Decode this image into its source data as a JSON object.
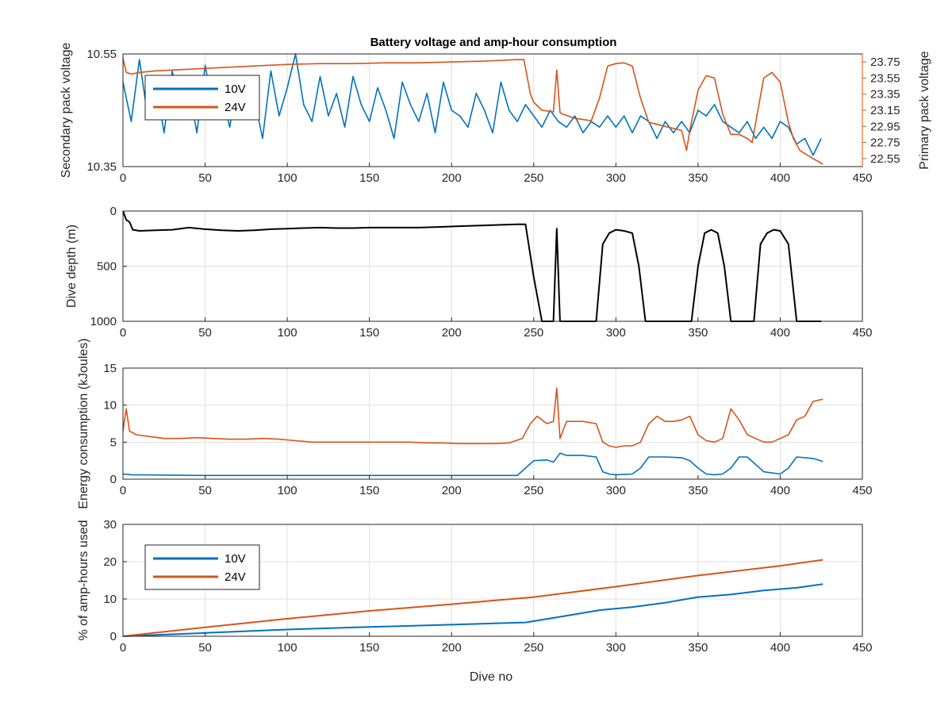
{
  "figure_title": "Battery voltage and amp-hour consumption",
  "colors": {
    "blue": "#0072BD",
    "orange": "#D95319",
    "black": "#000000",
    "axis": "#262626"
  },
  "chart_data": [
    {
      "type": "line",
      "id": "voltage",
      "title": "Battery voltage and amp-hour consumption",
      "xlabel": "",
      "ylabel": "Secondary pack voltage",
      "y2label": "Primary pack voltage",
      "xlim": [
        0,
        450
      ],
      "ylim": [
        10.35,
        10.55
      ],
      "y2lim": [
        22.45,
        23.85
      ],
      "xticks": [
        0,
        50,
        100,
        150,
        200,
        250,
        300,
        350,
        400,
        450
      ],
      "yticks": [
        "10.35",
        "10.55"
      ],
      "y2ticks": [
        "22.55",
        "22.75",
        "22.95",
        "23.15",
        "23.35",
        "23.55",
        "23.75"
      ],
      "grid": true,
      "legend": {
        "placement": "top-left",
        "entries": [
          "10V",
          "24V"
        ]
      },
      "series": [
        {
          "name": "10V",
          "axis": "left",
          "color": "#0072BD",
          "x": [
            0,
            5,
            10,
            15,
            20,
            25,
            30,
            35,
            40,
            45,
            50,
            55,
            60,
            65,
            70,
            75,
            80,
            85,
            90,
            95,
            100,
            105,
            110,
            115,
            120,
            125,
            130,
            135,
            140,
            145,
            150,
            155,
            160,
            165,
            170,
            175,
            180,
            185,
            190,
            195,
            200,
            205,
            210,
            215,
            220,
            225,
            230,
            235,
            240,
            245,
            250,
            255,
            260,
            265,
            270,
            275,
            280,
            285,
            290,
            295,
            300,
            305,
            310,
            315,
            320,
            325,
            330,
            335,
            340,
            345,
            350,
            355,
            360,
            365,
            370,
            375,
            380,
            385,
            390,
            395,
            400,
            405,
            410,
            415,
            420,
            425
          ],
          "y": [
            10.5,
            10.43,
            10.54,
            10.44,
            10.5,
            10.41,
            10.52,
            10.44,
            10.49,
            10.41,
            10.53,
            10.45,
            10.48,
            10.42,
            10.51,
            10.45,
            10.47,
            10.4,
            10.52,
            10.44,
            10.49,
            10.55,
            10.46,
            10.43,
            10.51,
            10.44,
            10.48,
            10.42,
            10.51,
            10.46,
            10.43,
            10.49,
            10.45,
            10.4,
            10.5,
            10.46,
            10.43,
            10.48,
            10.41,
            10.5,
            10.45,
            10.44,
            10.42,
            10.48,
            10.45,
            10.41,
            10.5,
            10.45,
            10.43,
            10.46,
            10.44,
            10.42,
            10.45,
            10.43,
            10.42,
            10.44,
            10.41,
            10.43,
            10.42,
            10.44,
            10.42,
            10.44,
            10.41,
            10.44,
            10.43,
            10.4,
            10.43,
            10.41,
            10.43,
            10.41,
            10.45,
            10.44,
            10.46,
            10.43,
            10.42,
            10.41,
            10.43,
            10.4,
            10.42,
            10.4,
            10.43,
            10.42,
            10.39,
            10.4,
            10.37,
            10.4
          ]
        },
        {
          "name": "24V",
          "axis": "right",
          "color": "#D95319",
          "x": [
            0,
            2,
            5,
            10,
            20,
            40,
            60,
            80,
            100,
            120,
            140,
            160,
            180,
            200,
            220,
            240,
            244,
            248,
            250,
            255,
            262,
            264,
            266,
            268,
            275,
            285,
            290,
            295,
            300,
            305,
            310,
            315,
            320,
            330,
            340,
            343,
            345,
            350,
            355,
            360,
            365,
            370,
            375,
            380,
            383,
            386,
            390,
            395,
            400,
            405,
            408,
            412,
            420,
            426
          ],
          "y": [
            23.8,
            23.62,
            23.6,
            23.62,
            23.64,
            23.66,
            23.68,
            23.7,
            23.72,
            23.73,
            23.73,
            23.74,
            23.74,
            23.75,
            23.76,
            23.78,
            23.78,
            23.35,
            23.25,
            23.15,
            23.13,
            23.65,
            23.12,
            23.1,
            23.05,
            23.02,
            23.3,
            23.7,
            23.73,
            23.74,
            23.7,
            23.3,
            23.0,
            22.95,
            22.9,
            22.65,
            22.9,
            23.4,
            23.58,
            23.55,
            23.1,
            22.85,
            22.85,
            22.8,
            22.75,
            23.1,
            23.55,
            23.62,
            23.5,
            23.0,
            22.8,
            22.65,
            22.55,
            22.48
          ]
        }
      ]
    },
    {
      "type": "line",
      "id": "depth",
      "xlabel": "",
      "ylabel": "Dive depth (m)",
      "xlim": [
        0,
        450
      ],
      "ylim": [
        0,
        1000
      ],
      "yreverse": true,
      "xticks": [
        0,
        50,
        100,
        150,
        200,
        250,
        300,
        350,
        400,
        450
      ],
      "yticks": [
        "0",
        "500",
        "1000"
      ],
      "grid": true,
      "series": [
        {
          "color": "#000000",
          "x": [
            0,
            2,
            4,
            6,
            10,
            20,
            30,
            40,
            50,
            60,
            70,
            80,
            90,
            100,
            110,
            120,
            130,
            140,
            150,
            160,
            170,
            180,
            190,
            200,
            210,
            220,
            230,
            240,
            245,
            250,
            255,
            262,
            264,
            266,
            268,
            275,
            285,
            288,
            292,
            296,
            300,
            305,
            310,
            314,
            318,
            330,
            342,
            346,
            350,
            354,
            358,
            362,
            366,
            370,
            380,
            384,
            388,
            392,
            396,
            400,
            405,
            410,
            420,
            425
          ],
          "y": [
            0,
            80,
            100,
            170,
            180,
            175,
            170,
            150,
            165,
            175,
            180,
            175,
            165,
            160,
            155,
            150,
            155,
            155,
            150,
            150,
            150,
            150,
            145,
            140,
            135,
            130,
            125,
            120,
            120,
            600,
            1000,
            1000,
            160,
            1000,
            1000,
            1000,
            1000,
            1000,
            300,
            200,
            170,
            180,
            200,
            500,
            1000,
            1000,
            1000,
            1000,
            500,
            200,
            170,
            200,
            500,
            1000,
            1000,
            1000,
            300,
            200,
            170,
            180,
            300,
            1000,
            1000,
            1000
          ]
        }
      ]
    },
    {
      "type": "line",
      "id": "energy",
      "xlabel": "",
      "ylabel": "Energy consumption (kJoules)",
      "xlim": [
        0,
        450
      ],
      "ylim": [
        0,
        15
      ],
      "xticks": [
        0,
        50,
        100,
        150,
        200,
        250,
        300,
        350,
        400,
        450
      ],
      "yticks": [
        "0",
        "5",
        "10",
        "15"
      ],
      "grid": true,
      "series": [
        {
          "name": "24V",
          "color": "#D95319",
          "x": [
            0,
            2,
            4,
            8,
            15,
            25,
            35,
            45,
            55,
            65,
            75,
            85,
            95,
            105,
            115,
            125,
            135,
            145,
            155,
            165,
            175,
            185,
            195,
            205,
            215,
            225,
            235,
            243,
            248,
            252,
            258,
            262,
            264,
            266,
            270,
            280,
            288,
            292,
            296,
            300,
            305,
            310,
            315,
            320,
            325,
            330,
            335,
            340,
            345,
            350,
            355,
            360,
            365,
            370,
            375,
            380,
            385,
            390,
            395,
            400,
            405,
            410,
            415,
            420,
            426
          ],
          "y": [
            6.5,
            9.5,
            6.5,
            6.0,
            5.8,
            5.5,
            5.5,
            5.6,
            5.5,
            5.4,
            5.4,
            5.5,
            5.4,
            5.2,
            5.0,
            5.0,
            5.0,
            5.0,
            5.0,
            5.0,
            5.0,
            4.9,
            4.9,
            4.8,
            4.8,
            4.8,
            4.9,
            5.5,
            7.5,
            8.5,
            7.5,
            7.8,
            12.3,
            5.5,
            7.8,
            7.8,
            7.5,
            5.0,
            4.5,
            4.3,
            4.5,
            4.5,
            5.0,
            7.5,
            8.5,
            7.8,
            7.8,
            8.0,
            8.5,
            6.0,
            5.2,
            5.0,
            5.5,
            9.5,
            8.0,
            6.0,
            5.5,
            5.0,
            5.0,
            5.5,
            6.0,
            8.0,
            8.5,
            10.5,
            10.8
          ]
        },
        {
          "name": "10V",
          "color": "#0072BD",
          "x": [
            0,
            5,
            50,
            100,
            150,
            200,
            240,
            245,
            250,
            258,
            262,
            266,
            270,
            280,
            288,
            292,
            296,
            300,
            310,
            315,
            320,
            330,
            340,
            345,
            350,
            355,
            360,
            365,
            370,
            375,
            380,
            390,
            400,
            405,
            410,
            420,
            426
          ],
          "y": [
            0.7,
            0.6,
            0.5,
            0.5,
            0.5,
            0.5,
            0.5,
            1.5,
            2.5,
            2.6,
            2.3,
            3.5,
            3.2,
            3.2,
            3.0,
            1.0,
            0.7,
            0.6,
            0.7,
            1.5,
            3.0,
            3.0,
            2.9,
            2.5,
            1.5,
            0.7,
            0.6,
            0.7,
            1.5,
            3.0,
            3.0,
            1.0,
            0.7,
            1.5,
            3.0,
            2.8,
            2.4
          ]
        }
      ]
    },
    {
      "type": "line",
      "id": "amphours",
      "xlabel": "Dive no",
      "ylabel": "% of amp-hours used",
      "xlim": [
        0,
        450
      ],
      "ylim": [
        0,
        30
      ],
      "xticks": [
        0,
        50,
        100,
        150,
        200,
        250,
        300,
        350,
        400,
        450
      ],
      "yticks": [
        "0",
        "10",
        "20",
        "30"
      ],
      "grid": true,
      "legend": {
        "placement": "top-left",
        "entries": [
          "10V",
          "24V"
        ]
      },
      "series": [
        {
          "name": "10V",
          "color": "#0072BD",
          "x": [
            0,
            50,
            100,
            150,
            200,
            245,
            270,
            290,
            310,
            330,
            350,
            370,
            390,
            410,
            426
          ],
          "y": [
            0,
            0.9,
            1.8,
            2.5,
            3.1,
            3.7,
            5.5,
            7.0,
            7.8,
            9.0,
            10.5,
            11.2,
            12.3,
            13.0,
            14.0
          ]
        },
        {
          "name": "24V",
          "color": "#D95319",
          "x": [
            0,
            50,
            100,
            150,
            200,
            250,
            300,
            350,
            400,
            426
          ],
          "y": [
            0,
            2.4,
            4.7,
            6.8,
            8.6,
            10.5,
            13.3,
            16.3,
            18.9,
            20.5
          ]
        }
      ]
    }
  ]
}
